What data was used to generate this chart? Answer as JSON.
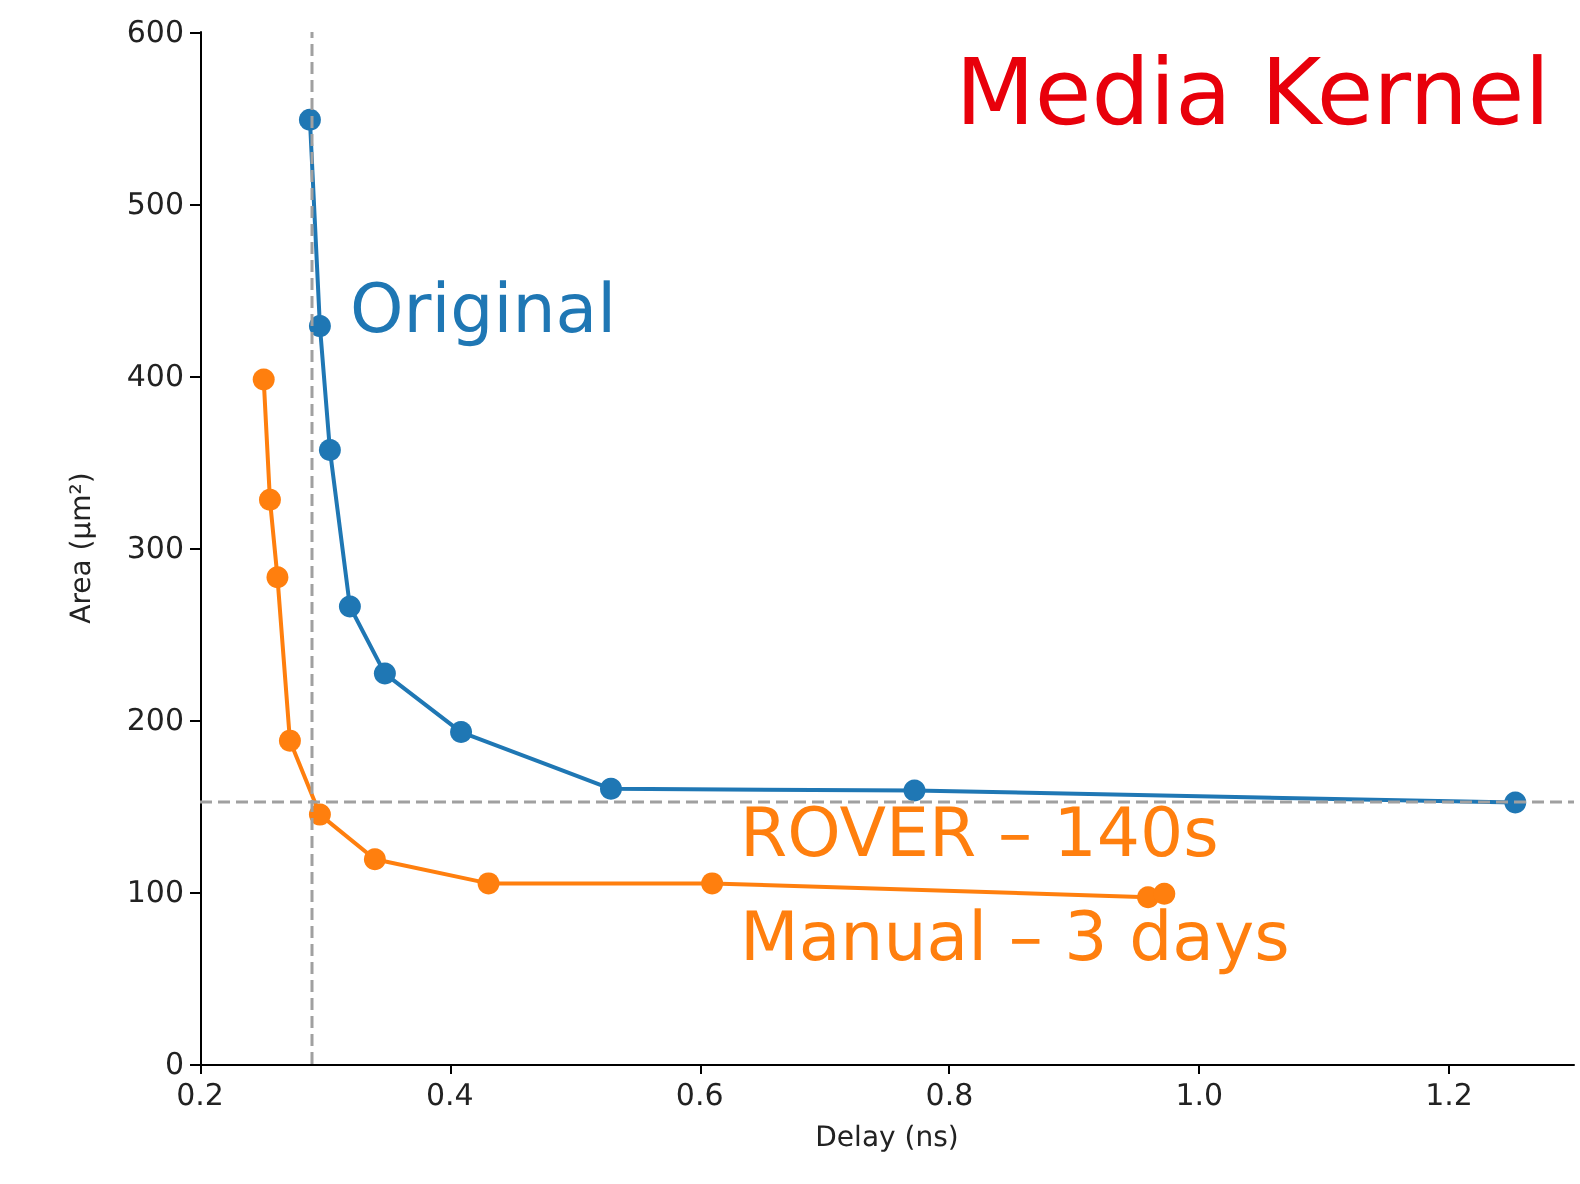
{
  "chart_data": {
    "type": "line",
    "title": "Media Kernel",
    "xlabel": "Delay (ns)",
    "ylabel": "Area (μm²)",
    "xlim": [
      0.2,
      1.3
    ],
    "xticks": [
      0.2,
      0.4,
      0.6,
      0.8,
      {
        "value": 1,
        "label": "1.0"
      },
      1.2
    ],
    "ylim": [
      0,
      600
    ],
    "yticks": [
      0,
      100,
      200,
      300,
      400,
      500,
      600
    ],
    "grid": false,
    "legend": false,
    "marker": "circle",
    "line_style": "solid",
    "series": [
      {
        "name": "Original",
        "color": "#1f77b4",
        "x": [
          0.288,
          0.296,
          0.304,
          0.32,
          0.348,
          0.409,
          0.529,
          0.772,
          1.253
        ],
        "values": [
          549,
          429,
          357,
          266,
          227,
          193,
          160,
          159,
          152
        ]
      },
      {
        "name": "ROVER – 140s",
        "color": "#ff7f0e",
        "x": [
          0.251,
          0.256,
          0.262,
          0.272,
          0.296,
          0.34,
          0.431,
          0.61,
          0.959,
          0.972
        ],
        "values": [
          398,
          328,
          283,
          188,
          145,
          119,
          105,
          105,
          97,
          99
        ]
      }
    ],
    "ref_lines": [
      {
        "axis": "x",
        "value": 0.288,
        "color": "#a0a0a0",
        "line_style": "dashed"
      },
      {
        "axis": "y",
        "value": 153,
        "color": "#a0a0a0",
        "line_style": "dashed"
      }
    ],
    "annotations": [
      "Manual – 3 days"
    ]
  }
}
